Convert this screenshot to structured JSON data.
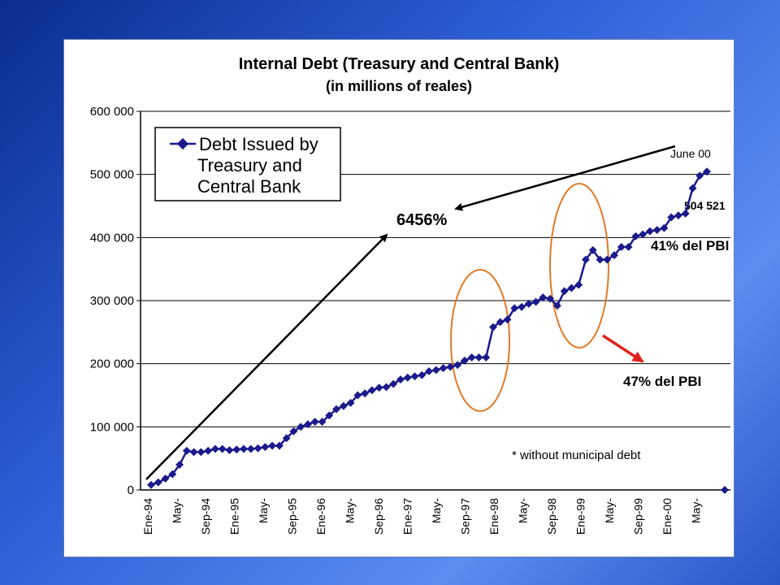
{
  "chart_data": {
    "type": "line",
    "title": "Internal Debt (Treasury and Central Bank)",
    "subtitle": "(in millions of reales)",
    "ylim": [
      0,
      600000
    ],
    "y_ticks": [
      "600 000",
      "500 000",
      "400 000",
      "300 000",
      "200 000",
      "100 000",
      "0"
    ],
    "y_tick_values": [
      600000,
      500000,
      400000,
      300000,
      200000,
      100000,
      0
    ],
    "grid": "horizontal",
    "legend_placement": "top-left",
    "x_tick_labels": [
      "Ene-94",
      "May-",
      "Sep-94",
      "Ene-95",
      "May-",
      "Sep-95",
      "Ene-96",
      "May-",
      "Sep-96",
      "Ene-97",
      "May-",
      "Sep-97",
      "Ene-98",
      "May-",
      "Sep-98",
      "Ene-99",
      "May-",
      "Sep-99",
      "Ene-00",
      "May-"
    ],
    "series": [
      {
        "name": "Debt Issued by Treasury and Central Bank",
        "color": "#1a1a8c",
        "values": [
          8000,
          12000,
          18000,
          25000,
          40000,
          62000,
          60000,
          60000,
          62000,
          65000,
          65000,
          63000,
          64000,
          65000,
          65000,
          66000,
          68000,
          70000,
          70000,
          82000,
          93000,
          100000,
          104000,
          108000,
          108000,
          118000,
          128000,
          133000,
          138000,
          150000,
          153000,
          158000,
          162000,
          163000,
          168000,
          175000,
          178000,
          180000,
          182000,
          188000,
          190000,
          193000,
          195000,
          198000,
          205000,
          210000,
          210000,
          210000,
          258000,
          266000,
          270000,
          288000,
          290000,
          295000,
          298000,
          305000,
          303000,
          292000,
          315000,
          320000,
          325000,
          365000,
          380000,
          365000,
          365000,
          372000,
          385000,
          385000,
          402000,
          405000,
          410000,
          412000,
          415000,
          432000,
          435000,
          438000,
          478000,
          498000,
          504521
        ],
        "final_point": 0
      }
    ],
    "annotations": {
      "growth_label": "6456%",
      "end_date": "June 00",
      "end_value": "504 521",
      "pct_gdp_1": "41% del PBI",
      "pct_gdp_2": "47% del PBI",
      "footnote": "* without municipal debt"
    },
    "legend_lines": [
      "Debt Issued by",
      "Treasury and",
      "Central Bank"
    ],
    "colors": {
      "line": "#1a1a8c",
      "ellipse": "#e07a28",
      "red_arrow": "#e0221c",
      "black_arrow": "#000000"
    }
  }
}
